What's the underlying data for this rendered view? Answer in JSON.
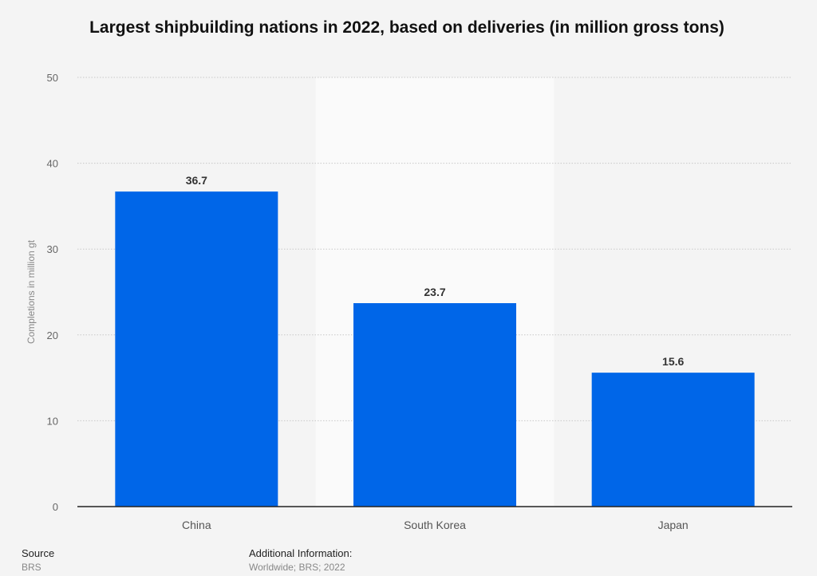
{
  "chart_data": {
    "type": "bar",
    "title": "Largest shipbuilding nations in 2022, based on deliveries (in million gross tons)",
    "xlabel": "",
    "ylabel": "Completions in million gt",
    "categories": [
      "China",
      "South Korea",
      "Japan"
    ],
    "values": [
      36.7,
      23.7,
      15.6
    ],
    "data_labels": [
      "36.7",
      "23.7",
      "15.6"
    ],
    "ylim": [
      0,
      50
    ],
    "yticks": [
      0,
      10,
      20,
      30,
      40,
      50
    ],
    "grid": true,
    "bar_color": "#0066e8"
  },
  "footer": {
    "source_label": "Source",
    "source_value": "BRS",
    "additional_label": "Additional Information:",
    "additional_value": "Worldwide; BRS; 2022"
  }
}
